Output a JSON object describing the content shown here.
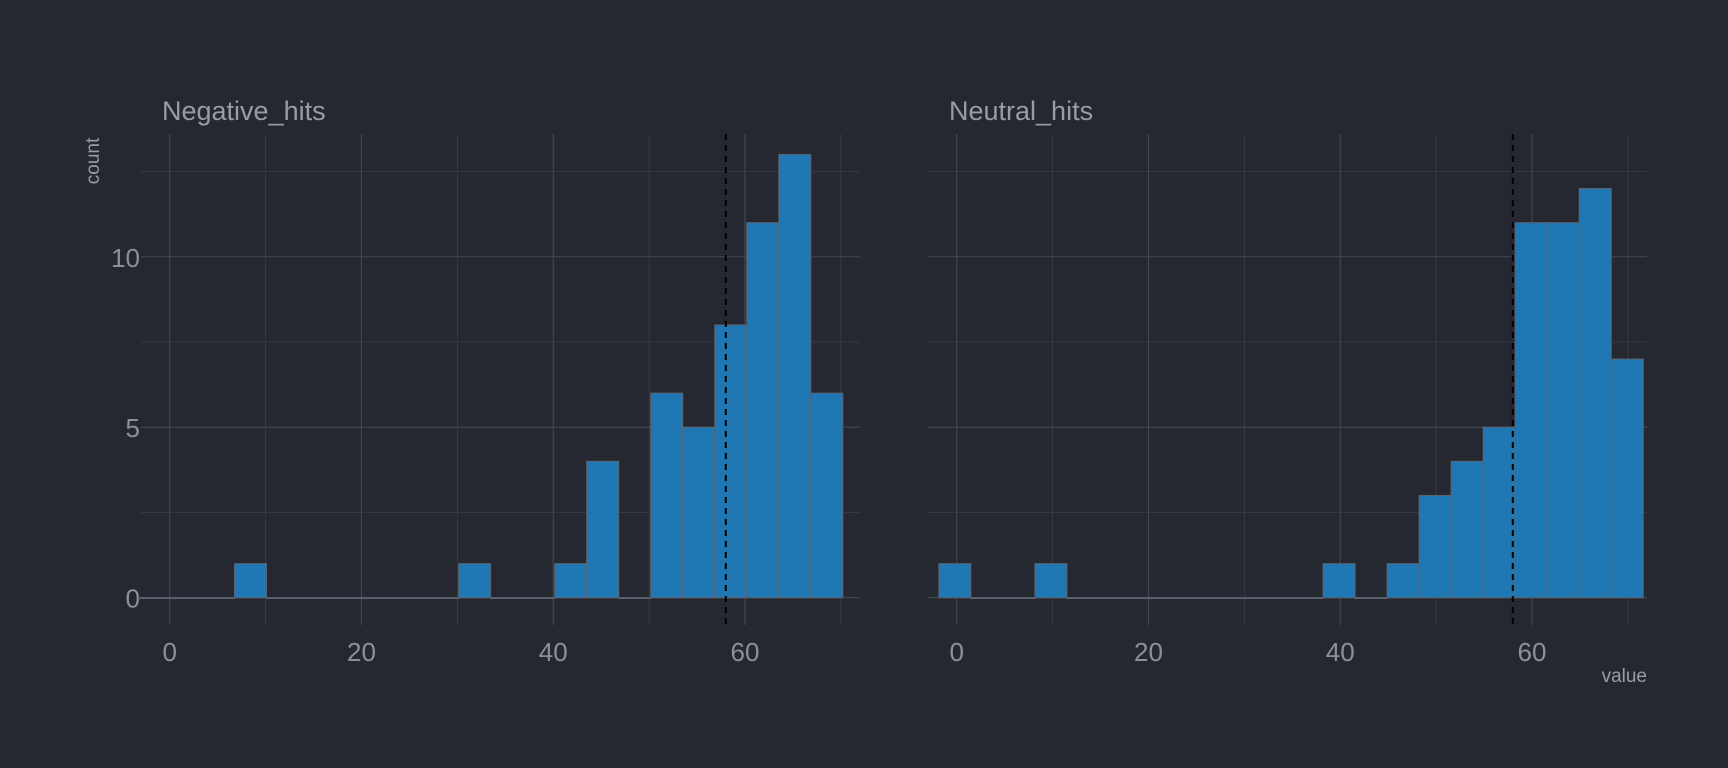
{
  "chart_data": {
    "type": "bar",
    "xlabel": "value",
    "ylabel": "count",
    "xlim": [
      -3,
      72
    ],
    "ylim": [
      -0.8,
      13.6
    ],
    "x_ticks": [
      0,
      20,
      40,
      60
    ],
    "y_ticks": [
      0,
      5,
      10
    ],
    "bin_width": 3.34,
    "colors": {
      "background": "#252830",
      "bar_fill": "#1f78b4",
      "mean_line": "#000000"
    },
    "panels": [
      {
        "title": "Negative_hits",
        "mean": 58.0,
        "bins": [
          {
            "x": -1.6,
            "count": 0
          },
          {
            "x": 1.74,
            "count": 0
          },
          {
            "x": 5.08,
            "count": 0
          },
          {
            "x": 8.42,
            "count": 1
          },
          {
            "x": 11.76,
            "count": 0
          },
          {
            "x": 15.1,
            "count": 0
          },
          {
            "x": 18.44,
            "count": 0
          },
          {
            "x": 21.78,
            "count": 0
          },
          {
            "x": 25.12,
            "count": 0
          },
          {
            "x": 28.46,
            "count": 0
          },
          {
            "x": 31.8,
            "count": 1
          },
          {
            "x": 35.14,
            "count": 0
          },
          {
            "x": 38.48,
            "count": 0
          },
          {
            "x": 41.82,
            "count": 1
          },
          {
            "x": 45.16,
            "count": 4
          },
          {
            "x": 48.5,
            "count": 0
          },
          {
            "x": 51.84,
            "count": 6
          },
          {
            "x": 55.18,
            "count": 5
          },
          {
            "x": 58.52,
            "count": 8
          },
          {
            "x": 61.86,
            "count": 11
          },
          {
            "x": 65.2,
            "count": 13
          },
          {
            "x": 68.54,
            "count": 6
          }
        ]
      },
      {
        "title": "Neutral_hits",
        "mean": 58.0,
        "bins": [
          {
            "x": -0.2,
            "count": 1
          },
          {
            "x": 3.14,
            "count": 0
          },
          {
            "x": 6.48,
            "count": 0
          },
          {
            "x": 9.82,
            "count": 1
          },
          {
            "x": 13.16,
            "count": 0
          },
          {
            "x": 16.5,
            "count": 0
          },
          {
            "x": 19.84,
            "count": 0
          },
          {
            "x": 23.18,
            "count": 0
          },
          {
            "x": 26.52,
            "count": 0
          },
          {
            "x": 29.86,
            "count": 0
          },
          {
            "x": 33.2,
            "count": 0
          },
          {
            "x": 36.54,
            "count": 0
          },
          {
            "x": 39.88,
            "count": 1
          },
          {
            "x": 43.22,
            "count": 0
          },
          {
            "x": 46.56,
            "count": 1
          },
          {
            "x": 49.9,
            "count": 3
          },
          {
            "x": 53.24,
            "count": 4
          },
          {
            "x": 56.58,
            "count": 5
          },
          {
            "x": 59.92,
            "count": 11
          },
          {
            "x": 63.26,
            "count": 11
          },
          {
            "x": 66.6,
            "count": 12
          },
          {
            "x": 69.94,
            "count": 7
          }
        ]
      }
    ]
  }
}
